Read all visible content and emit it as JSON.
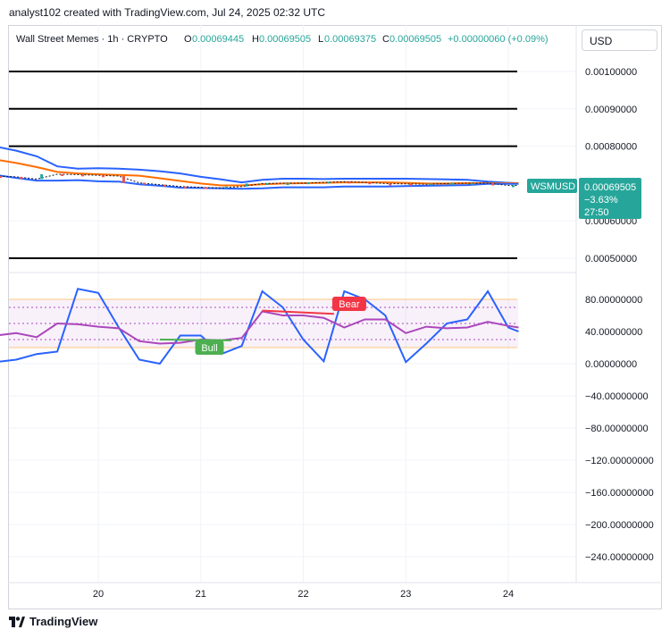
{
  "caption": "analyst102 created with TradingView.com, Jul 24, 2025 02:32 UTC",
  "legend": {
    "symbol": "Wall Street Memes · 1h · CRYPTO",
    "o_label": "O",
    "o": "0.00069445",
    "h_label": "H",
    "h": "0.00069505",
    "l_label": "L",
    "l": "0.00069375",
    "c_label": "C",
    "c": "0.00069505",
    "change": "+0.00000060 (+0.09%)"
  },
  "currency_button": "USD",
  "price_tag": {
    "symbol": "WSMUSD",
    "price": "0.00069505",
    "change": "−3.63%",
    "countdown": "27:50"
  },
  "footer_brand": "TradingView",
  "colors": {
    "up": "#26a69a",
    "down": "#ef5350",
    "bb": "#2962ff",
    "bb_basis": "#ff6d00",
    "stoch_rsi": "#2962ff",
    "rsi": "#ab47bc",
    "bear": "#f23645",
    "bull": "#4caf50"
  },
  "chart_data": [
    {
      "type": "line",
      "title": "Wall Street Memes · 1h · CRYPTO",
      "x_ticks": [
        "20",
        "21",
        "22",
        "23",
        "24"
      ],
      "y_ticks": [
        "0.00100000",
        "0.00090000",
        "0.00080000",
        "0.00060000",
        "0.00050000"
      ],
      "ylim": [
        0.00046,
        0.00105
      ],
      "horizontal_levels": [
        0.001,
        0.0009,
        0.0008,
        0.0005
      ],
      "x": [
        19.0,
        19.2,
        19.4,
        19.6,
        19.8,
        20.0,
        20.2,
        20.4,
        20.6,
        20.8,
        21.0,
        21.2,
        21.4,
        21.6,
        21.8,
        22.0,
        22.2,
        22.4,
        22.6,
        22.8,
        23.0,
        23.2,
        23.4,
        23.6,
        23.8,
        24.0,
        24.1
      ],
      "series": [
        {
          "name": "",
          "role": "upper",
          "values": [
            0.000799,
            0.000788,
            0.000773,
            0.000746,
            0.00074,
            0.000741,
            0.00074,
            0.000737,
            0.000733,
            0.000727,
            0.000718,
            0.000711,
            0.000703,
            0.00071,
            0.000713,
            0.000713,
            0.000712,
            0.000713,
            0.000713,
            0.000713,
            0.000713,
            0.000712,
            0.000711,
            0.00071,
            0.000705,
            0.000702,
            0.000701
          ]
        },
        {
          "name": "",
          "role": "basis",
          "values": [
            0.000764,
            0.000755,
            0.000744,
            0.000731,
            0.000727,
            0.000725,
            0.000723,
            0.000721,
            0.000714,
            0.000707,
            0.0007,
            0.000695,
            0.000695,
            0.000698,
            0.0007,
            0.000701,
            0.000702,
            0.000703,
            0.000703,
            0.000703,
            0.000702,
            0.0007,
            0.0007,
            0.000701,
            0.000701,
            0.000701,
            0.000701
          ]
        },
        {
          "name": "",
          "role": "lower",
          "values": [
            0.000723,
            0.000715,
            0.000708,
            0.000708,
            0.000709,
            0.000706,
            0.000705,
            0.000698,
            0.000694,
            0.000689,
            0.000688,
            0.000687,
            0.000686,
            0.000687,
            0.00069,
            0.00069,
            0.00069,
            0.000692,
            0.000692,
            0.000692,
            0.000693,
            0.000694,
            0.000695,
            0.000696,
            0.000699,
            0.000699,
            0.000699
          ]
        },
        {
          "name": "WSMUSD",
          "role": "price",
          "values": [
            0.00072,
            0.000718,
            0.000712,
            0.000725,
            0.000724,
            0.000722,
            0.00072,
            0.000702,
            0.000697,
            0.000692,
            0.00069,
            0.000688,
            0.000692,
            0.0007,
            0.000701,
            0.000701,
            0.000703,
            0.000705,
            0.000703,
            0.0007,
            0.000699,
            0.000698,
            0.0007,
            0.000701,
            0.000701,
            0.000695,
            0.000695
          ]
        }
      ]
    },
    {
      "type": "line",
      "y_ticks": [
        "80.00000000",
        "40.00000000",
        "0.00000000",
        "−40.00000000",
        "−80.00000000",
        "−120.00000000",
        "−160.00000000",
        "−200.00000000",
        "−240.00000000"
      ],
      "ylim": [
        -272,
        106
      ],
      "bands": [
        20,
        80
      ],
      "levels": [
        30,
        50,
        70
      ],
      "x": [
        19.0,
        19.2,
        19.4,
        19.6,
        19.8,
        20.0,
        20.2,
        20.4,
        20.6,
        20.8,
        21.0,
        21.2,
        21.4,
        21.6,
        21.8,
        22.0,
        22.2,
        22.4,
        22.6,
        22.8,
        23.0,
        23.2,
        23.4,
        23.6,
        23.8,
        24.0,
        24.1
      ],
      "series": [
        {
          "name": "",
          "color_key": "stoch_rsi",
          "values": [
            2,
            5,
            12,
            15,
            93,
            88,
            45,
            5,
            0,
            35,
            35,
            12,
            22,
            90,
            70,
            30,
            3,
            90,
            80,
            60,
            2,
            25,
            50,
            55,
            90,
            45,
            40
          ]
        },
        {
          "name": "",
          "color_key": "rsi",
          "values": [
            35,
            38,
            33,
            50,
            49,
            46,
            44,
            28,
            25,
            26,
            30,
            29,
            32,
            65,
            60,
            60,
            57,
            45,
            55,
            55,
            38,
            46,
            44,
            45,
            52,
            47,
            45
          ]
        }
      ],
      "annotations": [
        {
          "label": "Bear",
          "x": 22.3
        },
        {
          "label": "Bull",
          "x": 21.05
        }
      ]
    }
  ]
}
